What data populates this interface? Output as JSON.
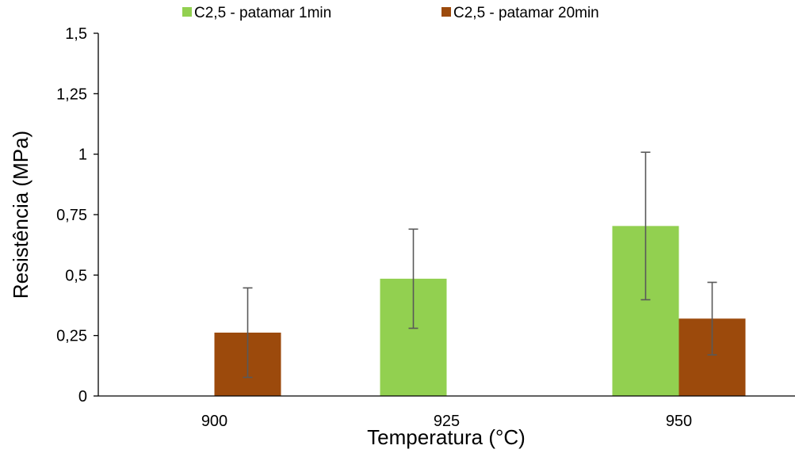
{
  "chart_data": {
    "type": "bar",
    "title": "",
    "xlabel": "Temperatura (°C)",
    "ylabel": "Resistência (MPa)",
    "categories": [
      "900",
      "925",
      "950"
    ],
    "ylim": [
      0,
      1.5
    ],
    "yticks": [
      {
        "value": 0,
        "label": "0"
      },
      {
        "value": 0.25,
        "label": "0,25"
      },
      {
        "value": 0.5,
        "label": "0,5"
      },
      {
        "value": 0.75,
        "label": "0,75"
      },
      {
        "value": 1,
        "label": "1"
      },
      {
        "value": 1.25,
        "label": "1,25"
      },
      {
        "value": 1.5,
        "label": "1,5"
      }
    ],
    "grid": false,
    "legend_position": "top",
    "series": [
      {
        "name": "C2,5 - patamar 1min",
        "color": "#92D050",
        "values": [
          0,
          0.485,
          0.703
        ],
        "error": [
          0,
          0.205,
          0.305
        ]
      },
      {
        "name": "C2,5 - patamar 20min",
        "color": "#9C4A0C",
        "values": [
          0.262,
          0,
          0.32
        ],
        "error": [
          0.185,
          0,
          0.15
        ]
      }
    ]
  }
}
